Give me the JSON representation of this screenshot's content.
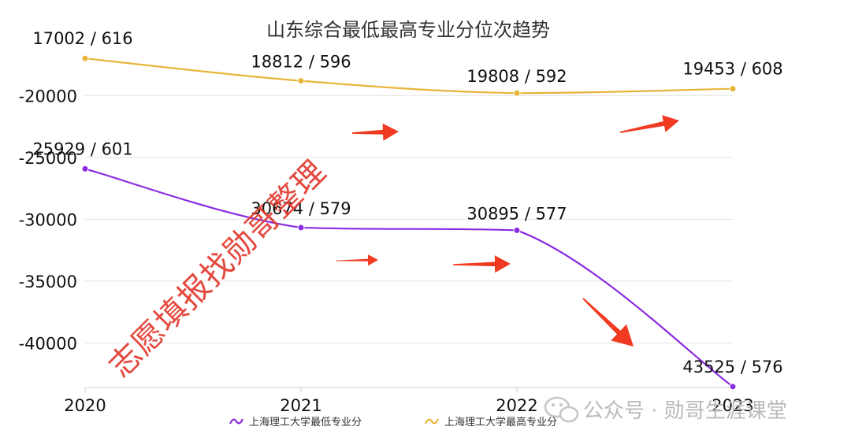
{
  "chart_data": {
    "type": "line",
    "title": "山东综合最低最高专业分位次趋势",
    "categories": [
      "2020",
      "2021",
      "2022",
      "2023"
    ],
    "y_ticks": [
      "-20000",
      "-25000",
      "-30000",
      "-35000",
      "-40000"
    ],
    "ylim": [
      -43600,
      -16100
    ],
    "grid": true,
    "legend_position": "bottom",
    "series": [
      {
        "name": "上海理工大学最低专业分",
        "color": "#8a2be2",
        "values": [
          -25929,
          -30674,
          -30895,
          -43525
        ],
        "labels": [
          "25929 / 601",
          "30674 / 579",
          "30895 / 577",
          "43525 / 576"
        ]
      },
      {
        "name": "上海理工大学最高专业分",
        "color": "#e8b53a",
        "values": [
          -17002,
          -18812,
          -19808,
          -19453
        ],
        "labels": [
          "17002 / 616",
          "18812 / 596",
          "19808 / 592",
          "19453 / 608"
        ]
      }
    ]
  },
  "watermark": {
    "text": "志愿填报找勋哥整理",
    "color": "#e23a2e"
  },
  "footer": {
    "text": "公众号 · 勋哥生涯课堂",
    "icon": "wechat-icon"
  },
  "annotation_color": "#f03a22"
}
